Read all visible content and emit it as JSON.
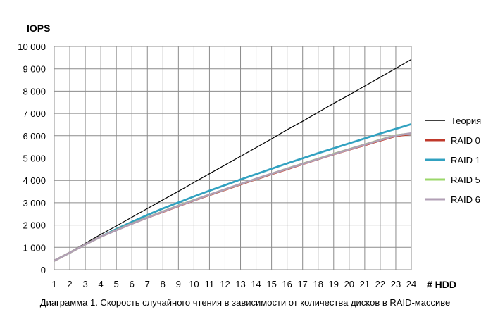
{
  "chart_data": {
    "type": "line",
    "title": "",
    "caption": "Диаграмма 1. Скорость случайного чтения в зависимости от количества дисков в RAID-массиве",
    "ylabel": "IOPS",
    "xlabel": "# HDD",
    "x": [
      1,
      2,
      3,
      4,
      5,
      6,
      7,
      8,
      9,
      10,
      11,
      12,
      13,
      14,
      15,
      16,
      17,
      18,
      19,
      20,
      21,
      22,
      23,
      24
    ],
    "xlim": [
      1,
      24
    ],
    "ylim": [
      0,
      10000
    ],
    "y_ticks": [
      "0",
      "1 000",
      "2 000",
      "3 000",
      "4 000",
      "5 000",
      "6 000",
      "7 000",
      "8 000",
      "9 000",
      "10 000"
    ],
    "y_tick_values": [
      0,
      1000,
      2000,
      3000,
      4000,
      5000,
      6000,
      7000,
      8000,
      9000,
      10000
    ],
    "x_tick_labels": [
      "1",
      "2",
      "3",
      "4",
      "5",
      "6",
      "7",
      "8",
      "9",
      "10",
      "11",
      "12",
      "13",
      "14",
      "15",
      "16",
      "17",
      "18",
      "19",
      "20",
      "21",
      "22",
      "23",
      "24"
    ],
    "grid": true,
    "legend_position": "right",
    "series": [
      {
        "name": "Теория",
        "color": "#000000",
        "values": [
          400,
          790,
          1180,
          1580,
          1960,
          2350,
          2740,
          3130,
          3510,
          3910,
          4300,
          4690,
          5080,
          5470,
          5860,
          6270,
          6650,
          7050,
          7450,
          7830,
          8230,
          8620,
          9020,
          9420
        ]
      },
      {
        "name": "RAID 0",
        "color": "#c0392b",
        "values": [
          400,
          760,
          1130,
          1480,
          1780,
          2060,
          2330,
          2590,
          2850,
          3100,
          3340,
          3580,
          3820,
          4050,
          4280,
          4500,
          4730,
          4950,
          5170,
          5380,
          5580,
          5790,
          5990,
          6070
        ]
      },
      {
        "name": "RAID 1",
        "color": "#31a1c0",
        "values": [
          400,
          760,
          1130,
          1480,
          1820,
          2140,
          2450,
          2740,
          3010,
          3280,
          3540,
          3790,
          4040,
          4280,
          4520,
          4760,
          4990,
          5220,
          5440,
          5660,
          5880,
          6100,
          6310,
          6520
        ]
      },
      {
        "name": "RAID 5",
        "color": "#9bd76a",
        "values": [
          400,
          760,
          1130,
          1480,
          1780,
          2070,
          2340,
          2610,
          2870,
          3120,
          3360,
          3600,
          3840,
          4070,
          4300,
          4530,
          4750,
          4970,
          5190,
          5400,
          5610,
          5820,
          6020,
          6100
        ]
      },
      {
        "name": "RAID 6",
        "color": "#b19fb5",
        "values": [
          400,
          760,
          1130,
          1480,
          1770,
          2060,
          2330,
          2600,
          2860,
          3110,
          3360,
          3600,
          3840,
          4070,
          4300,
          4520,
          4740,
          4960,
          5180,
          5390,
          5600,
          5810,
          6010,
          6110
        ]
      }
    ]
  }
}
